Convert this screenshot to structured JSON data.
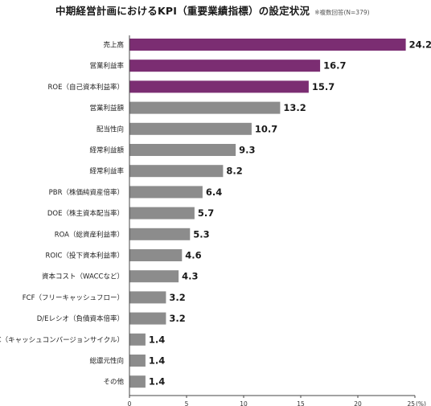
{
  "title": "中期経営計画におけるKPI（重要業績指標）の設定状況",
  "note": "※複数回答(N=379)",
  "colors": {
    "highlight": "#7b2d72",
    "normal": "#8c8c8c",
    "axis": "#444444",
    "grid": "#e8e8e8"
  },
  "chart_data": {
    "type": "bar",
    "orientation": "horizontal",
    "title": "中期経営計画におけるKPI（重要業績指標）の設定状況",
    "xlabel": "",
    "unit": "(%)",
    "xlim": [
      0,
      25
    ],
    "xticks": [
      0,
      5,
      10,
      15,
      20,
      25
    ],
    "grid": false,
    "categories": [
      "売上高",
      "営業利益率",
      "ROE（自己資本利益率）",
      "営業利益額",
      "配当性向",
      "経常利益額",
      "経常利益率",
      "PBR（株価純資産倍率）",
      "DOE（株主資本配当率）",
      "ROA（総資産利益率）",
      "ROIC（投下資本利益率）",
      "資本コスト（WACCなど）",
      "FCF（フリーキャッシュフロー）",
      "D/Eレシオ（負債資本倍率）",
      "CCC（キャッシュコンバージョンサイクル）",
      "総還元性向",
      "その他"
    ],
    "values": [
      24.2,
      16.7,
      15.7,
      13.2,
      10.7,
      9.3,
      8.2,
      6.4,
      5.7,
      5.3,
      4.6,
      4.3,
      3.2,
      3.2,
      1.4,
      1.4,
      1.4
    ],
    "value_labels": [
      "24.2",
      "16.7",
      "15.7",
      "13.2",
      "10.7",
      "9.3",
      "8.2",
      "6.4",
      "5.7",
      "5.3",
      "4.6",
      "4.3",
      "3.2",
      "3.2",
      "1.4",
      "1.4",
      "1.4"
    ],
    "highlighted": [
      true,
      true,
      true,
      false,
      false,
      false,
      false,
      false,
      false,
      false,
      false,
      false,
      false,
      false,
      false,
      false,
      false
    ]
  }
}
